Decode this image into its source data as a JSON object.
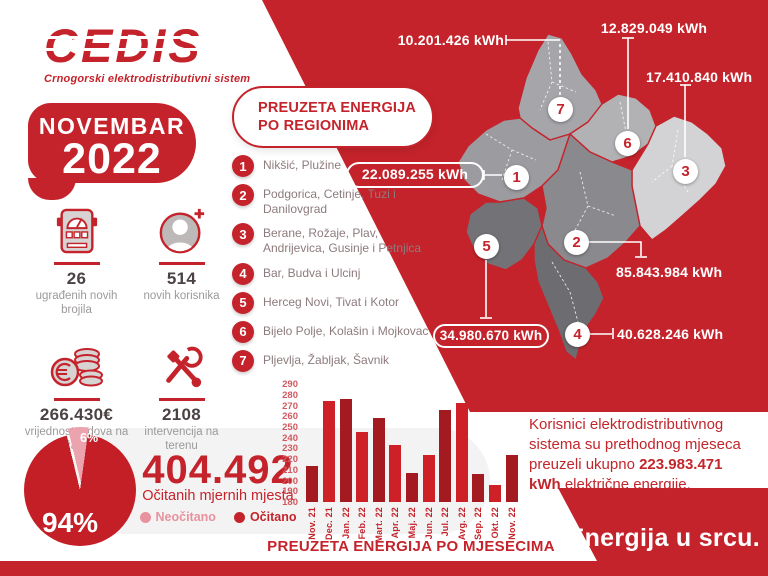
{
  "colors": {
    "brand_red": "#c5232b",
    "deep_red": "#a31a20",
    "bright_red": "#ce2027",
    "pie_red": "#c41f27",
    "pink": "#eba3ae",
    "pink_text": "#e8929e",
    "panel_gray": "#f3f3f4"
  },
  "brand": {
    "logo": "CEDIS",
    "tagline": "Crnogorski elektrodistributivni sistem"
  },
  "period": {
    "month": "NOVEMBAR",
    "year": "2022"
  },
  "stats": [
    {
      "icon": "electric-meter-icon",
      "value": "26",
      "label": "ugrađenih novih brojila"
    },
    {
      "icon": "new-user-icon",
      "value": "514",
      "label": "novih korisnika"
    },
    {
      "icon": "euro-coins-icon",
      "value": "266.430€",
      "label": "vrijednost radova na održavanju"
    },
    {
      "icon": "tools-icon",
      "value": "2108",
      "label": "intervencija na terenu"
    }
  ],
  "regions_panel": {
    "title": "PREUZETA ENERGIJA PO REGIONIMA"
  },
  "regions": [
    {
      "num": "1",
      "name": "Nikšić, Plužine",
      "kwh": "22.089.255 kWh"
    },
    {
      "num": "2",
      "name": "Podgorica, Cetinje, Tuzi i Danilovgrad",
      "kwh": "85.843.984 kWh"
    },
    {
      "num": "3",
      "name": "Berane, Rožaje, Plav, Andrijevica, Gusinje i Petnjica",
      "kwh": "17.410.840 kWh"
    },
    {
      "num": "4",
      "name": "Bar, Budva i Ulcinj",
      "kwh": "40.628.246 kWh"
    },
    {
      "num": "5",
      "name": "Herceg Novi, Tivat i Kotor",
      "kwh": "34.980.670 kWh"
    },
    {
      "num": "6",
      "name": "Bijelo Polje, Kolašin i Mojkovac",
      "kwh": "12.829.049 kWh"
    },
    {
      "num": "7",
      "name": "Pljevlja, Žabljak, Šavnik",
      "kwh": "10.201.426 kWh"
    }
  ],
  "meter_summary": {
    "total": "404.492",
    "subtitle": "Očitanih mjernih mjesta",
    "read_pct_label": "94%",
    "unread_pct_label": "6%",
    "legend_unread": "Neočitano",
    "legend_read": "Očitano"
  },
  "chart_data": [
    {
      "type": "bar",
      "title": "PREUZETA ENERGIJA PO MJESECIMA",
      "categories": [
        "Nov. 21",
        "Dec. 21",
        "Jan. 22",
        "Feb. 22",
        "Mart. 22",
        "Apr. 22",
        "Maj. 22",
        "Jun. 22",
        "Jul. 22",
        "Avg. 22",
        "Sep. 22",
        "Okt. 22",
        "Nov. 22"
      ],
      "values": [
        214,
        274,
        276,
        245,
        258,
        233,
        207,
        224,
        266,
        272,
        206,
        196,
        224
      ],
      "xlabel": "",
      "ylabel": "",
      "ylim": [
        180,
        290
      ],
      "ytick_step": 10,
      "grid": false,
      "legend_position": "none"
    },
    {
      "type": "pie",
      "labels": [
        "Očitano",
        "Neočitano"
      ],
      "values": [
        94,
        6
      ],
      "colors": [
        "#c41f27",
        "#eba3ae"
      ],
      "title": "Očitanih mjernih mjesta"
    }
  ],
  "summary": {
    "part1": "Korisnici elektrodistributivnog sistema su prethodnog mjeseca preuzeli ukupno ",
    "highlight": "223.983.471 kWh",
    "part2": " električne energije."
  },
  "slogan": "Energija u srcu."
}
